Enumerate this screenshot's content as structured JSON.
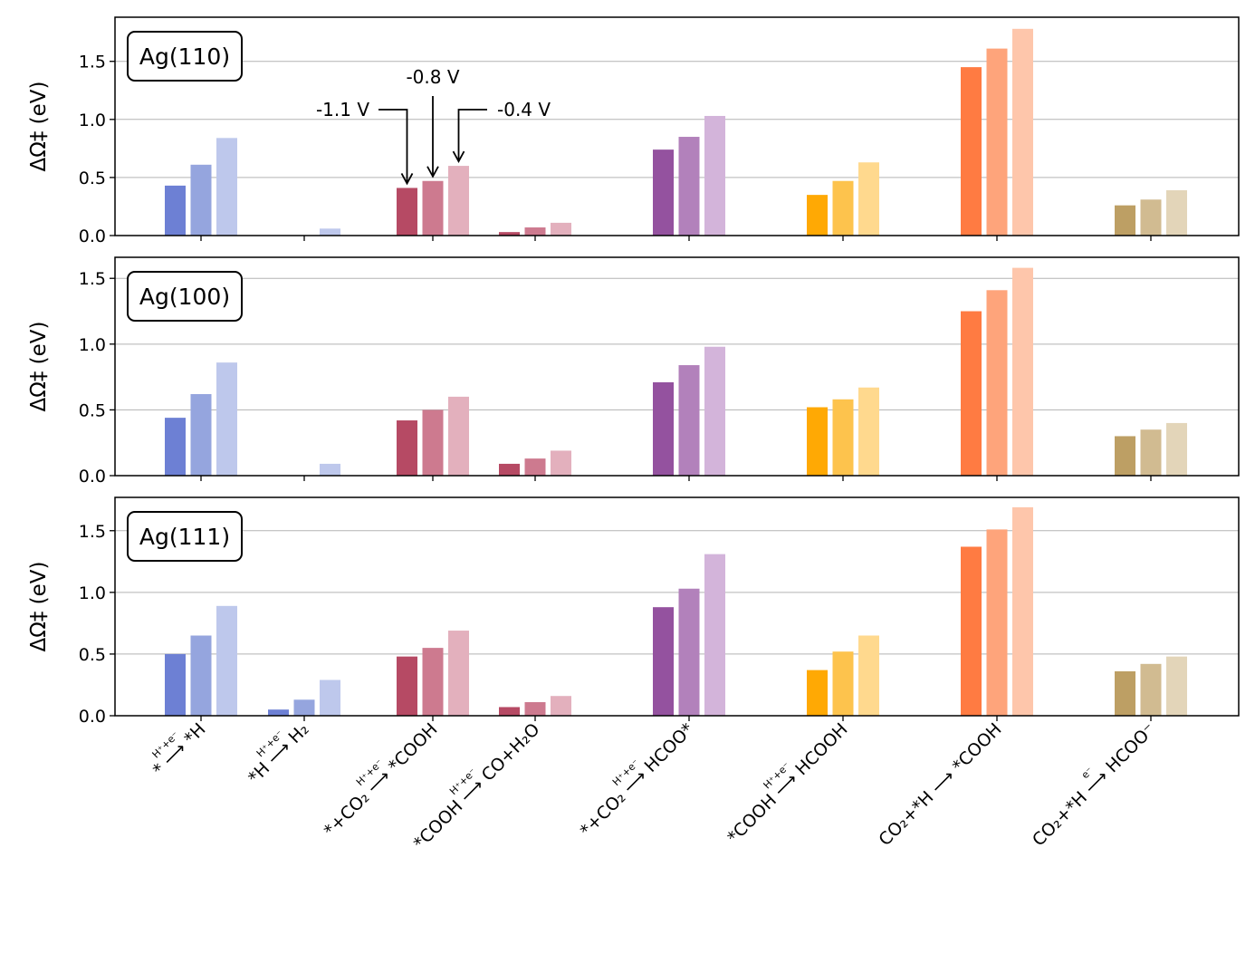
{
  "chart_data": {
    "type": "bar",
    "ylabel": "ΔΩ‡ (eV)",
    "potentials": [
      "-1.1 V",
      "-0.8 V",
      "-0.4 V"
    ],
    "categories": [
      {
        "id": "c1",
        "lhs": "*",
        "over": "H⁺+e⁻",
        "rhs": "*H"
      },
      {
        "id": "c2",
        "lhs": "*H",
        "over": "H⁺+e⁻",
        "rhs": "H₂"
      },
      {
        "id": "c3",
        "lhs": "*+CO₂",
        "over": "H⁺+e⁻",
        "rhs": "*COOH"
      },
      {
        "id": "c4",
        "lhs": "*COOH",
        "over": "H⁺+e⁻",
        "rhs": "CO+H₂O"
      },
      {
        "id": "c5",
        "lhs": "*+CO₂",
        "over": "H⁺+e⁻",
        "rhs": "HCOO*"
      },
      {
        "id": "c6",
        "lhs": "*COOH",
        "over": "H⁺+e⁻",
        "rhs": "HCOOH"
      },
      {
        "id": "c7",
        "lhs": "CO₂+*H",
        "over": "",
        "rhs": "*COOH"
      },
      {
        "id": "c8",
        "lhs": "CO₂+*H",
        "over": "e⁻",
        "rhs": "HCOO⁻"
      }
    ],
    "colors": [
      [
        "#6d80d4",
        "#95a5de",
        "#bec8ec"
      ],
      [
        "#6d80d4",
        "#95a5de",
        "#bec8ec"
      ],
      [
        "#b64a64",
        "#cd7a8f",
        "#e3b0bd"
      ],
      [
        "#b64a64",
        "#cd7a8f",
        "#e3b0bd"
      ],
      [
        "#94529f",
        "#b281bb",
        "#d3b4da"
      ],
      [
        "#ffa904",
        "#fdc34d",
        "#ffd98e"
      ],
      [
        "#ff7b42",
        "#fea47b",
        "#fec6ab"
      ],
      [
        "#bd9f64",
        "#d1bb91",
        "#e3d5b9"
      ]
    ],
    "panels": [
      {
        "label": "Ag(110)",
        "ylim": [
          0,
          1.88
        ],
        "yticks": [
          "0.0",
          "0.5",
          "1.0",
          "1.5"
        ],
        "values": [
          [
            0.43,
            0.61,
            0.84
          ],
          [
            0.0,
            0.0,
            0.06
          ],
          [
            0.41,
            0.47,
            0.6
          ],
          [
            0.03,
            0.07,
            0.11
          ],
          [
            0.74,
            0.85,
            1.03
          ],
          [
            0.35,
            0.47,
            0.63
          ],
          [
            1.45,
            1.61,
            1.78
          ],
          [
            0.26,
            0.31,
            0.39
          ]
        ]
      },
      {
        "label": "Ag(100)",
        "ylim": [
          0,
          1.66
        ],
        "yticks": [
          "0.0",
          "0.5",
          "1.0",
          "1.5"
        ],
        "values": [
          [
            0.44,
            0.62,
            0.86
          ],
          [
            0.0,
            0.0,
            0.09
          ],
          [
            0.42,
            0.5,
            0.6
          ],
          [
            0.09,
            0.13,
            0.19
          ],
          [
            0.71,
            0.84,
            0.98
          ],
          [
            0.52,
            0.58,
            0.67
          ],
          [
            1.25,
            1.41,
            1.58
          ],
          [
            0.3,
            0.35,
            0.4
          ]
        ]
      },
      {
        "label": "Ag(111)",
        "ylim": [
          0,
          1.77
        ],
        "yticks": [
          "0.0",
          "0.5",
          "1.0",
          "1.5"
        ],
        "values": [
          [
            0.5,
            0.65,
            0.89
          ],
          [
            0.05,
            0.13,
            0.29
          ],
          [
            0.48,
            0.55,
            0.69
          ],
          [
            0.07,
            0.11,
            0.16
          ],
          [
            0.88,
            1.03,
            1.31
          ],
          [
            0.37,
            0.52,
            0.65
          ],
          [
            1.37,
            1.51,
            1.69
          ],
          [
            0.36,
            0.42,
            0.48
          ]
        ]
      }
    ]
  }
}
